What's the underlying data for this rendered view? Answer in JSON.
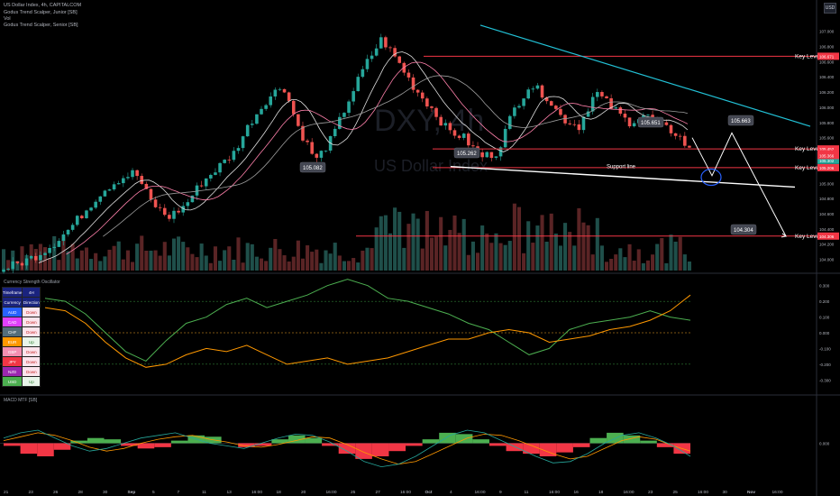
{
  "header": {
    "symbol_line": "US Dollar Index, 4h, CAPITALCOM",
    "indicators": [
      "Godus Trend Scalper, Junior [SB]",
      "Vol",
      "Godus Trend Scalper, Senior [SB]"
    ],
    "currency_badge": "USD"
  },
  "watermark": {
    "ticker": "DXY, 4h",
    "name": "US Dollar Index"
  },
  "colors": {
    "up": "#26a69a",
    "down": "#ef5350",
    "key_level": "#f23645",
    "trend": "#22c1d6",
    "support": "#ffffff",
    "arrow": "#ffffff",
    "circle": "#2962ff"
  },
  "chart_data": [
    {
      "type": "candlestick",
      "title": "US Dollar Index, 4h, CAPITALCOM",
      "ylim": [
        103.9,
        107.15
      ],
      "y_ticks": [
        "107.000",
        "106.800",
        "106.600",
        "106.400",
        "106.200",
        "106.000",
        "105.800",
        "105.600",
        "105.400",
        "105.200",
        "105.000",
        "104.800",
        "104.600",
        "104.400",
        "104.200",
        "104.000"
      ],
      "x_tick_labels": [
        "21",
        "23",
        "26",
        "28",
        "30",
        "Sep",
        "5",
        "7",
        "11",
        "13",
        "16:00",
        "18",
        "20",
        "16:00",
        "25",
        "27",
        "16:00",
        "Oct",
        "4",
        "16:00",
        "9",
        "11",
        "16:00",
        "16",
        "18",
        "16:00",
        "23",
        "25",
        "16:00",
        "30",
        "Nov",
        "16:00"
      ],
      "series_anchor_prices": [
        103.88,
        103.95,
        104.05,
        104.2,
        104.4,
        104.65,
        104.9,
        105.05,
        105.15,
        104.75,
        104.55,
        104.7,
        105.0,
        105.2,
        105.4,
        105.8,
        106.1,
        106.3,
        105.7,
        105.3,
        105.6,
        106.1,
        106.55,
        106.9,
        106.6,
        106.25,
        106.0,
        105.7,
        105.6,
        105.35,
        105.4,
        105.95,
        106.3,
        106.15,
        105.85,
        105.75,
        106.2,
        106.0,
        105.8,
        105.9,
        105.75,
        105.65,
        105.35
      ],
      "key_levels": [
        {
          "label": "Key Level",
          "price": 106.671,
          "price_label": "106.671"
        },
        {
          "label": "Key Level",
          "price": 105.452,
          "price_label": "105.452"
        },
        {
          "label": "Key Level",
          "price": 105.206,
          "price_label": "105.206"
        },
        {
          "label": "Key Level",
          "price": 104.306,
          "price_label": "104.306"
        }
      ],
      "price_axis_tags": [
        {
          "price": 105.302,
          "text": "105.302",
          "color": "#26a69a"
        },
        {
          "price": 105.388,
          "text": "105.388",
          "color": "#f23645"
        },
        {
          "price": 105.366,
          "text": "105.366",
          "color": "#f23645"
        }
      ],
      "callouts": [
        {
          "text": "105.082",
          "price": 105.082
        },
        {
          "text": "105.262",
          "price": 105.262
        },
        {
          "text": "105.651",
          "price": 105.651
        },
        {
          "text": "105.663",
          "price": 105.663
        },
        {
          "text": "104.304",
          "price": 104.304
        }
      ],
      "annotations": {
        "support_line": "Support line"
      },
      "projection_path_prices": [
        105.6,
        105.1,
        105.663,
        104.304
      ]
    },
    {
      "type": "line",
      "title": "Currency Strength Oscillator",
      "ylim": [
        -0.35,
        0.35
      ],
      "y_ticks": [
        "0.300",
        "0.200",
        "0.100",
        "0.000",
        "-0.100",
        "-0.200",
        "-0.300"
      ],
      "reference_levels": [
        0.2,
        0.0,
        -0.2
      ],
      "series": [
        {
          "name": "",
          "color": "#4caf50",
          "values": [
            0.22,
            0.2,
            0.12,
            0.0,
            -0.12,
            -0.18,
            -0.05,
            0.06,
            0.1,
            0.18,
            0.22,
            0.16,
            0.2,
            0.24,
            0.3,
            0.34,
            0.3,
            0.22,
            0.2,
            0.16,
            0.12,
            0.06,
            0.02,
            -0.06,
            -0.14,
            -0.1,
            0.02,
            0.06,
            0.08,
            0.1,
            0.14,
            0.1,
            0.08
          ]
        },
        {
          "name": "",
          "color": "#ff9800",
          "values": [
            0.16,
            0.14,
            0.06,
            -0.06,
            -0.16,
            -0.22,
            -0.2,
            -0.14,
            -0.1,
            -0.12,
            -0.08,
            -0.14,
            -0.2,
            -0.18,
            -0.16,
            -0.2,
            -0.18,
            -0.16,
            -0.12,
            -0.08,
            -0.04,
            -0.04,
            0.0,
            0.02,
            0.0,
            -0.06,
            -0.04,
            -0.02,
            0.02,
            0.04,
            0.08,
            0.14,
            0.24
          ]
        }
      ],
      "table": {
        "headers": [
          "Timeframe",
          "4H"
        ],
        "subheaders": [
          "Currency",
          "Direction"
        ],
        "rows": [
          {
            "currency": "AUD",
            "direction": "Down",
            "color": "#2962ff"
          },
          {
            "currency": "CAD",
            "direction": "Down",
            "color": "#e040fb"
          },
          {
            "currency": "CHF",
            "direction": "Down",
            "color": "#546e7a"
          },
          {
            "currency": "EUR",
            "direction": "Up",
            "color": "#ff9800"
          },
          {
            "currency": "GBP",
            "direction": "Down",
            "color": "#f48fb1"
          },
          {
            "currency": "JPY",
            "direction": "Down",
            "color": "#f23645"
          },
          {
            "currency": "NZD",
            "direction": "Down",
            "color": "#9c27b0"
          },
          {
            "currency": "USD",
            "direction": "Up",
            "color": "#4caf50"
          }
        ]
      }
    },
    {
      "type": "area",
      "title": "MACD MTF [SB]",
      "ylim": [
        -0.3,
        0.3
      ],
      "y_ticks": [
        "0.000"
      ],
      "histogram": [
        -0.02,
        -0.08,
        -0.1,
        -0.05,
        0.02,
        0.04,
        0.03,
        -0.02,
        -0.04,
        -0.03,
        0.02,
        0.06,
        0.05,
        0.0,
        -0.03,
        -0.02,
        0.03,
        0.06,
        0.04,
        -0.02,
        -0.08,
        -0.12,
        -0.1,
        -0.06,
        -0.02,
        0.03,
        0.08,
        0.07,
        0.03,
        -0.02,
        -0.06,
        -0.08,
        -0.1,
        -0.07,
        -0.03,
        0.04,
        0.08,
        0.06,
        0.02,
        -0.03,
        -0.08
      ],
      "series": [
        {
          "name": "",
          "color": "#ff9800",
          "values": [
            0.02,
            0.05,
            0.08,
            0.06,
            0.02,
            -0.03,
            -0.06,
            -0.04,
            0.0,
            0.03,
            0.05,
            0.06,
            0.03,
            0.01,
            -0.02,
            -0.03,
            -0.01,
            0.02,
            0.05,
            0.04,
            -0.01,
            -0.07,
            -0.12,
            -0.16,
            -0.14,
            -0.08,
            -0.02,
            0.04,
            0.07,
            0.06,
            0.02,
            -0.03,
            -0.08,
            -0.12,
            -0.1,
            -0.04,
            0.02,
            0.05,
            0.03,
            -0.02,
            -0.06
          ]
        },
        {
          "name": "",
          "color": "#26a69a",
          "values": [
            0.04,
            0.08,
            0.1,
            0.04,
            -0.02,
            -0.06,
            -0.04,
            0.0,
            0.04,
            0.06,
            0.08,
            0.04,
            0.0,
            -0.02,
            -0.04,
            0.0,
            0.04,
            0.07,
            0.06,
            0.01,
            -0.06,
            -0.14,
            -0.18,
            -0.16,
            -0.1,
            -0.02,
            0.06,
            0.1,
            0.08,
            0.02,
            -0.04,
            -0.1,
            -0.15,
            -0.14,
            -0.08,
            0.0,
            0.06,
            0.08,
            0.04,
            -0.02,
            -0.1
          ]
        }
      ],
      "x_tick_labels": [
        "21",
        "23",
        "26",
        "28",
        "30",
        "Sep",
        "5",
        "7",
        "11",
        "13",
        "16:00",
        "18",
        "20",
        "16:00",
        "25",
        "27",
        "16:00",
        "Oct",
        "4",
        "16:00",
        "9",
        "11",
        "16:00",
        "16",
        "18",
        "16:00",
        "23",
        "25",
        "16:00",
        "30",
        "Nov",
        "16:00"
      ]
    }
  ]
}
